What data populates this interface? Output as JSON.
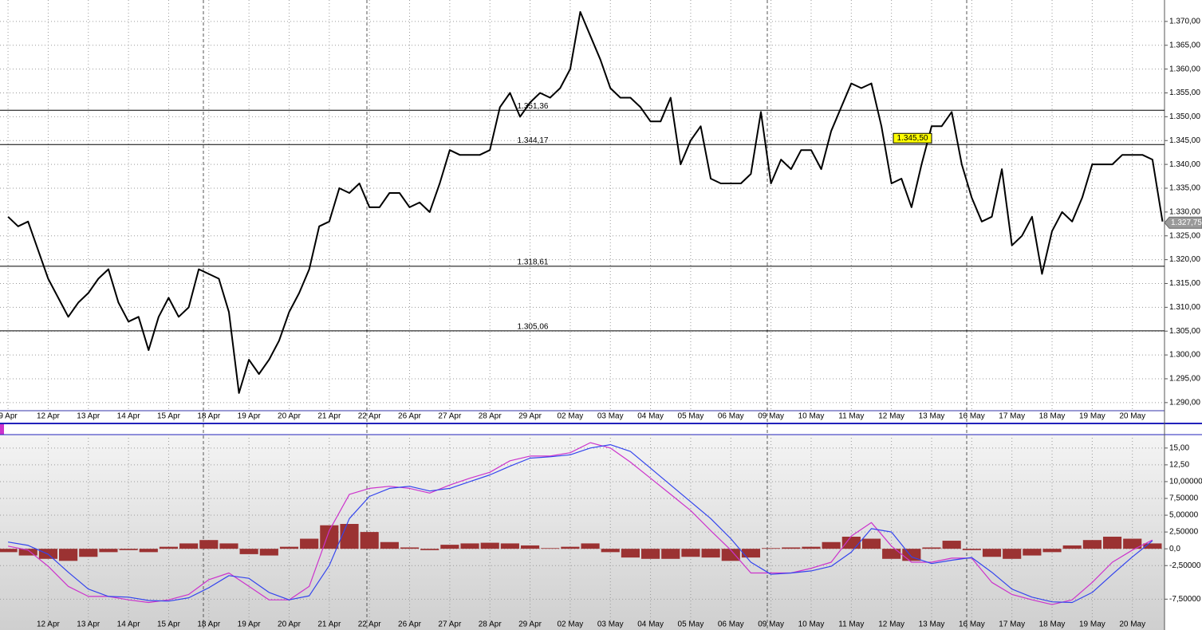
{
  "chart_data": [
    {
      "type": "line",
      "xlim": [
        -0.2,
        28.8
      ],
      "ylim": [
        1.2883,
        1.3745
      ],
      "grid": true,
      "xticks": [
        {
          "value": 0,
          "label": "9 Apr"
        },
        {
          "value": 1,
          "label": "12 Apr"
        },
        {
          "value": 2,
          "label": "13 Apr"
        },
        {
          "value": 3,
          "label": "14 Apr"
        },
        {
          "value": 4,
          "label": "15 Apr"
        },
        {
          "value": 5,
          "label": "18 Apr"
        },
        {
          "value": 6,
          "label": "19 Apr"
        },
        {
          "value": 7,
          "label": "20 Apr"
        },
        {
          "value": 8,
          "label": "21 Apr"
        },
        {
          "value": 9,
          "label": "22 Apr"
        },
        {
          "value": 10,
          "label": "26 Apr"
        },
        {
          "value": 11,
          "label": "27 Apr"
        },
        {
          "value": 12,
          "label": "28 Apr"
        },
        {
          "value": 13,
          "label": "29 Apr"
        },
        {
          "value": 14,
          "label": "02 May"
        },
        {
          "value": 15,
          "label": "03 May"
        },
        {
          "value": 16,
          "label": "04 May"
        },
        {
          "value": 17,
          "label": "05 May"
        },
        {
          "value": 18,
          "label": "06 May"
        },
        {
          "value": 19,
          "label": "09 May"
        },
        {
          "value": 20,
          "label": "10 May"
        },
        {
          "value": 21,
          "label": "11 May"
        },
        {
          "value": 22,
          "label": "12 May"
        },
        {
          "value": 23,
          "label": "13 May"
        },
        {
          "value": 24,
          "label": "16 May"
        },
        {
          "value": 25,
          "label": "17 May"
        },
        {
          "value": 26,
          "label": "18 May"
        },
        {
          "value": 27,
          "label": "19 May"
        },
        {
          "value": 28,
          "label": "20 May"
        }
      ],
      "yticks": [
        {
          "value": 1.29,
          "label": "1.290,00"
        },
        {
          "value": 1.295,
          "label": "1.295,00"
        },
        {
          "value": 1.3,
          "label": "1.300,00"
        },
        {
          "value": 1.305,
          "label": "1.305,00"
        },
        {
          "value": 1.31,
          "label": "1.310,00"
        },
        {
          "value": 1.315,
          "label": "1.315,00"
        },
        {
          "value": 1.32,
          "label": "1.320,00"
        },
        {
          "value": 1.325,
          "label": "1.325,00"
        },
        {
          "value": 1.33,
          "label": "1.330,00"
        },
        {
          "value": 1.335,
          "label": "1.335,00"
        },
        {
          "value": 1.34,
          "label": "1.340,00"
        },
        {
          "value": 1.345,
          "label": "1.345,00"
        },
        {
          "value": 1.35,
          "label": "1.350,00"
        },
        {
          "value": 1.355,
          "label": "1.355,00"
        },
        {
          "value": 1.36,
          "label": "1.360,00"
        },
        {
          "value": 1.365,
          "label": "1.365,00"
        },
        {
          "value": 1.37,
          "label": "1.370,00"
        }
      ],
      "levels": [
        {
          "value": 1.35136,
          "label": "1.351,36"
        },
        {
          "value": 1.34417,
          "label": "1.344,17"
        },
        {
          "value": 1.31861,
          "label": "1.318,61"
        },
        {
          "value": 1.30506,
          "label": "1.305,06"
        }
      ],
      "marker": {
        "value": 1.3455,
        "label": "1.345,50"
      },
      "current": {
        "value": 1.32775,
        "label": "1.327,75"
      },
      "x": [
        0,
        0.25,
        0.5,
        0.75,
        1,
        1.25,
        1.5,
        1.75,
        2,
        2.25,
        2.5,
        2.75,
        3,
        3.25,
        3.5,
        3.75,
        4,
        4.25,
        4.5,
        4.75,
        5,
        5.25,
        5.5,
        5.75,
        6,
        6.25,
        6.5,
        6.75,
        7,
        7.25,
        7.5,
        7.75,
        8,
        8.25,
        8.5,
        8.75,
        9,
        9.25,
        9.5,
        9.75,
        10,
        10.25,
        10.5,
        10.75,
        11,
        11.25,
        11.5,
        11.75,
        12,
        12.25,
        12.5,
        12.75,
        13,
        13.25,
        13.5,
        13.75,
        14,
        14.25,
        14.5,
        14.75,
        15,
        15.25,
        15.5,
        15.75,
        16,
        16.25,
        16.5,
        16.75,
        17,
        17.25,
        17.5,
        17.75,
        18,
        18.25,
        18.5,
        18.75,
        19,
        19.25,
        19.5,
        19.75,
        20,
        20.25,
        20.5,
        20.75,
        21,
        21.25,
        21.5,
        21.75,
        22,
        22.25,
        22.5,
        22.75,
        23,
        23.25,
        23.5,
        23.75,
        24,
        24.25,
        24.5,
        24.75,
        25,
        25.25,
        25.5,
        25.75,
        26,
        26.25,
        26.5,
        26.75,
        27,
        27.25,
        27.5,
        27.75,
        28,
        28.25,
        28.5,
        28.75
      ],
      "series": [
        {
          "color": "#000000",
          "values": [
            1.329,
            1.327,
            1.328,
            1.322,
            1.316,
            1.312,
            1.308,
            1.311,
            1.313,
            1.316,
            1.318,
            1.311,
            1.307,
            1.308,
            1.301,
            1.308,
            1.312,
            1.308,
            1.31,
            1.318,
            1.317,
            1.316,
            1.309,
            1.292,
            1.299,
            1.296,
            1.299,
            1.303,
            1.309,
            1.313,
            1.318,
            1.327,
            1.328,
            1.335,
            1.334,
            1.336,
            1.331,
            1.331,
            1.334,
            1.334,
            1.331,
            1.332,
            1.33,
            1.336,
            1.343,
            1.342,
            1.342,
            1.342,
            1.343,
            1.352,
            1.355,
            1.35,
            1.353,
            1.355,
            1.354,
            1.356,
            1.36,
            1.372,
            1.367,
            1.362,
            1.356,
            1.354,
            1.354,
            1.352,
            1.349,
            1.349,
            1.354,
            1.34,
            1.345,
            1.348,
            1.337,
            1.336,
            1.336,
            1.336,
            1.338,
            1.351,
            1.336,
            1.341,
            1.339,
            1.343,
            1.343,
            1.339,
            1.347,
            1.352,
            1.357,
            1.356,
            1.357,
            1.348,
            1.336,
            1.337,
            1.331,
            1.34,
            1.348,
            1.348,
            1.351,
            1.34,
            1.333,
            1.328,
            1.329,
            1.339,
            1.323,
            1.325,
            1.329,
            1.317,
            1.326,
            1.33,
            1.328,
            1.333,
            1.34,
            1.34,
            1.34,
            1.342,
            1.342,
            1.342,
            1.341,
            1.328
          ]
        }
      ]
    },
    {
      "type": "line",
      "xlim": [
        -0.2,
        28.8
      ],
      "ylim": [
        -11.5,
        17
      ],
      "grid": true,
      "xticks": [
        {
          "value": 1,
          "label": "12 Apr"
        },
        {
          "value": 2,
          "label": "13 Apr"
        },
        {
          "value": 3,
          "label": "14 Apr"
        },
        {
          "value": 4,
          "label": "15 Apr"
        },
        {
          "value": 5,
          "label": "18 Apr"
        },
        {
          "value": 6,
          "label": "19 Apr"
        },
        {
          "value": 7,
          "label": "20 Apr"
        },
        {
          "value": 8,
          "label": "21 Apr"
        },
        {
          "value": 9,
          "label": "22 Apr"
        },
        {
          "value": 10,
          "label": "26 Apr"
        },
        {
          "value": 11,
          "label": "27 Apr"
        },
        {
          "value": 12,
          "label": "28 Apr"
        },
        {
          "value": 13,
          "label": "29 Apr"
        },
        {
          "value": 14,
          "label": "02 May"
        },
        {
          "value": 15,
          "label": "03 May"
        },
        {
          "value": 16,
          "label": "04 May"
        },
        {
          "value": 17,
          "label": "05 May"
        },
        {
          "value": 18,
          "label": "06 May"
        },
        {
          "value": 19,
          "label": "09 May"
        },
        {
          "value": 20,
          "label": "10 May"
        },
        {
          "value": 21,
          "label": "11 May"
        },
        {
          "value": 22,
          "label": "12 May"
        },
        {
          "value": 23,
          "label": "13 May"
        },
        {
          "value": 24,
          "label": "16 May"
        },
        {
          "value": 25,
          "label": "17 May"
        },
        {
          "value": 26,
          "label": "18 May"
        },
        {
          "value": 27,
          "label": "19 May"
        },
        {
          "value": 28,
          "label": "20 May"
        }
      ],
      "yticks": [
        {
          "value": 15,
          "label": "15,00"
        },
        {
          "value": 12.5,
          "label": "12,50"
        },
        {
          "value": 10,
          "label": "10,00000"
        },
        {
          "value": 7.5,
          "label": "7,50000"
        },
        {
          "value": 5,
          "label": "5,00000"
        },
        {
          "value": 2.5,
          "label": "2,50000"
        },
        {
          "value": 0,
          "label": "0,0"
        },
        {
          "value": -2.5,
          "label": "-2,50000"
        },
        {
          "value": -7.5,
          "label": "-7,50000"
        }
      ],
      "x": [
        0,
        0.5,
        1,
        1.5,
        2,
        2.5,
        3,
        3.5,
        4,
        4.5,
        5,
        5.5,
        6,
        6.5,
        7,
        7.5,
        8,
        8.5,
        9,
        9.5,
        10,
        10.5,
        11,
        11.5,
        12,
        12.5,
        13,
        13.5,
        14,
        14.5,
        15,
        15.5,
        16,
        16.5,
        17,
        17.5,
        18,
        18.5,
        19,
        19.5,
        20,
        20.5,
        21,
        21.5,
        22,
        22.5,
        23,
        23.5,
        24,
        24.5,
        25,
        25.5,
        26,
        26.5,
        27,
        27.5,
        28,
        28.5
      ],
      "series": [
        {
          "type": "bar",
          "color": "#9b3232",
          "values": [
            -0.5,
            -1,
            -1.5,
            -1.8,
            -1.2,
            -0.5,
            -0.2,
            -0.5,
            0.3,
            0.8,
            1.3,
            0.8,
            -0.8,
            -1,
            0.3,
            1.5,
            3.5,
            3.7,
            2.5,
            1,
            0.2,
            -0.2,
            0.6,
            0.8,
            0.9,
            0.8,
            0.5,
            0.1,
            0.3,
            0.8,
            -0.5,
            -1.3,
            -1.5,
            -1.5,
            -1.2,
            -1.3,
            -1.8,
            -1.3,
            0.1,
            0.2,
            0.3,
            1,
            1.8,
            1.5,
            -1.5,
            -1.8,
            0.2,
            1.2,
            -0.2,
            -1.2,
            -1.5,
            -1,
            -0.5,
            0.5,
            1.3,
            1.8,
            1.5,
            0.8
          ]
        },
        {
          "type": "line",
          "color": "#cc33cc",
          "values": [
            0.4,
            -0.2,
            -2.6,
            -5.6,
            -7.1,
            -7.1,
            -7.6,
            -8,
            -7.6,
            -6.8,
            -4.6,
            -3.6,
            -5.6,
            -7.6,
            -7.6,
            -5.6,
            2.7,
            8.1,
            9,
            9.3,
            9,
            8.3,
            9.5,
            10.5,
            11.4,
            13.1,
            13.8,
            13.8,
            14.3,
            15.8,
            15,
            12.9,
            10.5,
            8.1,
            5.7,
            2.7,
            -0.2,
            -3.6,
            -3.6,
            -3.6,
            -2.9,
            -2,
            1.9,
            3.9,
            0.4,
            -2,
            -2,
            -1.4,
            -1.4,
            -5,
            -6.8,
            -7.6,
            -8.3,
            -7.6,
            -5,
            -2,
            -0.2,
            1.3
          ]
        },
        {
          "type": "line",
          "color": "#3344ee",
          "values": [
            1.0,
            0.5,
            -0.8,
            -3.5,
            -6,
            -7.1,
            -7.2,
            -7.7,
            -7.8,
            -7.3,
            -5.8,
            -4,
            -4.4,
            -6.5,
            -7.6,
            -7,
            -2.5,
            4.5,
            7.8,
            9.0,
            9.3,
            8.6,
            9,
            10,
            11,
            12.3,
            13.5,
            13.7,
            14,
            15,
            15.5,
            14.5,
            12,
            9.5,
            7,
            4.5,
            1.5,
            -2,
            -3.8,
            -3.6,
            -3.3,
            -2.6,
            -0.5,
            3,
            2.5,
            -1.2,
            -2.2,
            -1.7,
            -1.3,
            -3.5,
            -6,
            -7.2,
            -7.9,
            -8,
            -6.5,
            -3.8,
            -1.2,
            1.2
          ]
        }
      ]
    }
  ]
}
